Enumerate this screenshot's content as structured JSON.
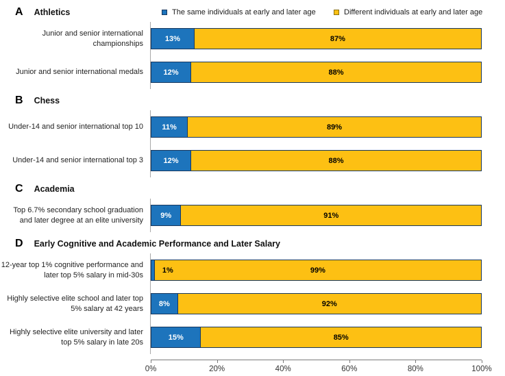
{
  "figure": {
    "colors": {
      "same_blue": "#1d74bc",
      "different_yellow": "#fdc013",
      "bar_border": "#17375e",
      "baseline_gray": "#a8a8a8",
      "axis_gray": "#7a7a7a"
    },
    "legend": [
      {
        "label": "The same individuals at early and later age",
        "color": "#1d74bc"
      },
      {
        "label": "Different individuals at early and later age",
        "color": "#fdc013"
      }
    ],
    "axis": {
      "ticks": [
        {
          "label": "0%",
          "pos": 0
        },
        {
          "label": "20%",
          "pos": 20
        },
        {
          "label": "40%",
          "pos": 40
        },
        {
          "label": "60%",
          "pos": 60
        },
        {
          "label": "80%",
          "pos": 80
        },
        {
          "label": "100%",
          "pos": 100
        }
      ]
    }
  },
  "chart_data": [
    {
      "type": "bar",
      "orientation": "horizontal-stacked",
      "panel": "A",
      "title": "Athletics",
      "categories": [
        "Junior and senior international championships",
        "Junior and senior international medals"
      ],
      "series": [
        {
          "name": "The same individuals at early and later age",
          "values": [
            13,
            12
          ]
        },
        {
          "name": "Different individuals at early and later age",
          "values": [
            87,
            88
          ]
        }
      ],
      "xlim": [
        0,
        100
      ]
    },
    {
      "type": "bar",
      "orientation": "horizontal-stacked",
      "panel": "B",
      "title": "Chess",
      "categories": [
        "Under-14 and senior international top 10",
        "Under-14 and senior international top 3"
      ],
      "series": [
        {
          "name": "The same individuals at early and later age",
          "values": [
            11,
            12
          ]
        },
        {
          "name": "Different individuals at early and later age",
          "values": [
            89,
            88
          ]
        }
      ],
      "xlim": [
        0,
        100
      ]
    },
    {
      "type": "bar",
      "orientation": "horizontal-stacked",
      "panel": "C",
      "title": "Academia",
      "categories": [
        "Top 6.7% secondary school graduation and later degree at an elite university"
      ],
      "series": [
        {
          "name": "The same individuals at early and later age",
          "values": [
            9
          ]
        },
        {
          "name": "Different individuals at early and later age",
          "values": [
            91
          ]
        }
      ],
      "xlim": [
        0,
        100
      ]
    },
    {
      "type": "bar",
      "orientation": "horizontal-stacked",
      "panel": "D",
      "title": "Early Cognitive and Academic Performance and Later Salary",
      "categories": [
        "12-year top 1% cognitive performance and later top 5% salary in mid-30s",
        "Highly selective elite school and later top 5% salary at 42 years",
        "Highly selective elite university and later top 5% salary in late 20s"
      ],
      "series": [
        {
          "name": "The same individuals at early and later age",
          "values": [
            1,
            8,
            15
          ]
        },
        {
          "name": "Different individuals at early and later age",
          "values": [
            99,
            92,
            85
          ]
        }
      ],
      "xlim": [
        0,
        100
      ]
    }
  ]
}
